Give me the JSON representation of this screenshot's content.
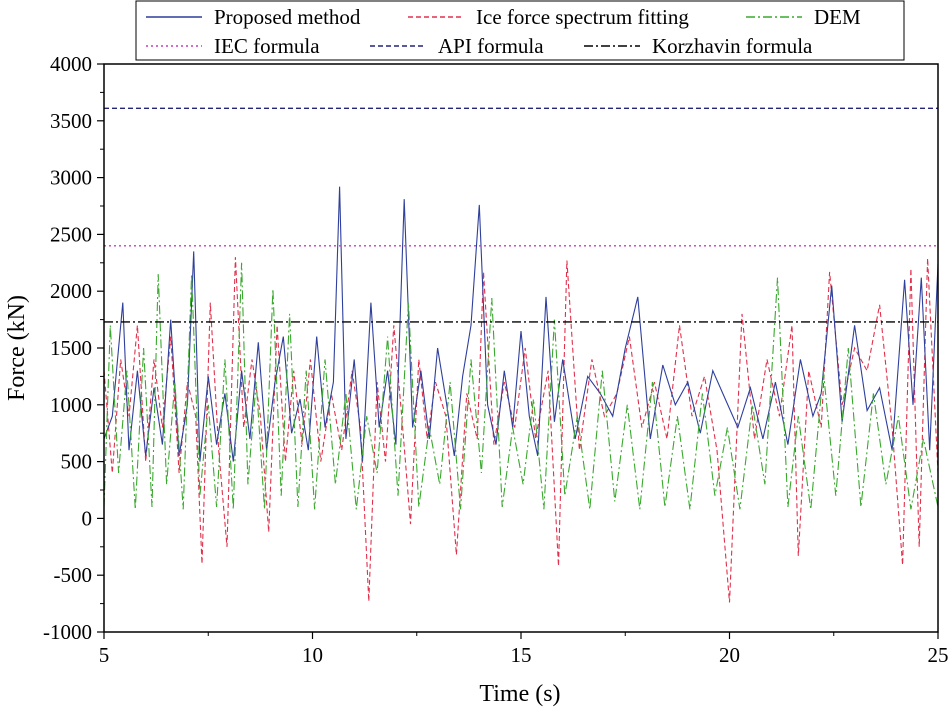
{
  "chart_data": {
    "type": "line",
    "title": "",
    "xlabel": "Time (s)",
    "ylabel": "Force (kN)",
    "xlim": [
      5,
      25
    ],
    "ylim": [
      -1000,
      4000
    ],
    "x_ticks": [
      5,
      10,
      15,
      20,
      25
    ],
    "y_ticks": [
      -1000,
      -500,
      0,
      500,
      1000,
      1500,
      2000,
      2500,
      3000,
      3500,
      4000
    ],
    "grid": false,
    "legend_position": "top",
    "series": [
      {
        "name": "Proposed method",
        "color": "#2e3f9c",
        "style": "solid",
        "x": [
          5.0,
          5.2,
          5.45,
          5.6,
          5.8,
          6.0,
          6.2,
          6.4,
          6.6,
          6.8,
          7.0,
          7.15,
          7.3,
          7.5,
          7.7,
          7.9,
          8.1,
          8.3,
          8.5,
          8.7,
          8.9,
          9.1,
          9.3,
          9.5,
          9.7,
          9.9,
          10.1,
          10.3,
          10.5,
          10.65,
          10.8,
          11.0,
          11.2,
          11.4,
          11.6,
          11.8,
          12.0,
          12.2,
          12.4,
          12.6,
          12.8,
          13.0,
          13.2,
          13.4,
          13.6,
          13.8,
          14.0,
          14.2,
          14.4,
          14.6,
          14.8,
          15.0,
          15.2,
          15.4,
          15.6,
          15.8,
          16.0,
          16.3,
          16.6,
          16.9,
          17.2,
          17.5,
          17.8,
          18.1,
          18.4,
          18.7,
          19.0,
          19.3,
          19.6,
          19.9,
          20.2,
          20.5,
          20.8,
          21.1,
          21.4,
          21.7,
          22.0,
          22.2,
          22.45,
          22.7,
          23.0,
          23.3,
          23.6,
          23.9,
          24.2,
          24.4,
          24.6,
          24.8,
          25.0
        ],
        "values": [
          700,
          900,
          1900,
          600,
          1300,
          550,
          1150,
          650,
          1750,
          550,
          1000,
          2350,
          500,
          1250,
          650,
          1100,
          500,
          1300,
          700,
          1550,
          600,
          1200,
          1600,
          750,
          1050,
          600,
          1600,
          800,
          1200,
          2920,
          700,
          1400,
          500,
          1900,
          800,
          1300,
          650,
          2810,
          800,
          1300,
          700,
          1500,
          1050,
          550,
          1250,
          1700,
          2760,
          1000,
          650,
          1300,
          800,
          1650,
          900,
          550,
          1950,
          850,
          1400,
          700,
          1250,
          1100,
          900,
          1500,
          1950,
          700,
          1350,
          1000,
          1200,
          750,
          1300,
          1050,
          800,
          1150,
          700,
          1200,
          650,
          1400,
          900,
          1100,
          2050,
          850,
          1700,
          950,
          1150,
          600,
          2100,
          1000,
          2120,
          600,
          2240
        ]
      },
      {
        "name": "Ice force spectrum  fitting",
        "color": "#e0304b",
        "style": "dashed",
        "x": [
          5.0,
          5.2,
          5.4,
          5.6,
          5.8,
          6.0,
          6.2,
          6.4,
          6.6,
          6.8,
          7.0,
          7.2,
          7.35,
          7.55,
          7.75,
          7.95,
          8.15,
          8.35,
          8.55,
          8.75,
          8.95,
          9.15,
          9.35,
          9.55,
          9.75,
          9.95,
          10.2,
          10.45,
          10.7,
          10.95,
          11.15,
          11.35,
          11.55,
          11.75,
          11.95,
          12.15,
          12.35,
          12.55,
          12.75,
          12.95,
          13.2,
          13.45,
          13.7,
          13.95,
          14.1,
          14.35,
          14.6,
          14.85,
          15.1,
          15.35,
          15.65,
          15.9,
          16.1,
          16.4,
          16.7,
          17.0,
          17.3,
          17.6,
          17.9,
          18.2,
          18.5,
          18.8,
          19.1,
          19.4,
          19.7,
          20.0,
          20.3,
          20.6,
          20.9,
          21.2,
          21.5,
          21.65,
          21.9,
          22.2,
          22.4,
          22.7,
          23.0,
          23.3,
          23.6,
          23.9,
          24.15,
          24.35,
          24.55,
          24.75,
          25.0
        ],
        "values": [
          1300,
          400,
          1400,
          900,
          1700,
          500,
          1400,
          800,
          1600,
          400,
          1200,
          900,
          -400,
          1900,
          600,
          -250,
          2300,
          800,
          1400,
          900,
          -120,
          1700,
          500,
          1300,
          650,
          1400,
          500,
          1100,
          600,
          1300,
          800,
          -730,
          1200,
          500,
          1700,
          850,
          -50,
          1400,
          700,
          1200,
          900,
          -320,
          1100,
          700,
          2170,
          650,
          1200,
          800,
          1500,
          700,
          1300,
          -420,
          2270,
          600,
          1400,
          900,
          1100,
          1600,
          800,
          1200,
          700,
          1700,
          900,
          1250,
          600,
          -740,
          1800,
          700,
          1400,
          900,
          1700,
          -330,
          1300,
          800,
          2170,
          1000,
          1500,
          1300,
          1880,
          800,
          -410,
          2200,
          -250,
          2290,
          400
        ]
      },
      {
        "name": "DEM",
        "color": "#3aa82e",
        "style": "dashdot",
        "x": [
          5.0,
          5.15,
          5.35,
          5.55,
          5.75,
          5.95,
          6.15,
          6.3,
          6.5,
          6.7,
          6.9,
          7.1,
          7.3,
          7.5,
          7.7,
          7.9,
          8.1,
          8.3,
          8.45,
          8.65,
          8.85,
          9.05,
          9.25,
          9.45,
          9.65,
          9.85,
          10.05,
          10.3,
          10.55,
          10.8,
          11.05,
          11.3,
          11.55,
          11.8,
          12.05,
          12.3,
          12.55,
          12.8,
          13.05,
          13.3,
          13.55,
          13.8,
          14.05,
          14.3,
          14.55,
          14.8,
          15.05,
          15.3,
          15.55,
          15.8,
          16.05,
          16.35,
          16.65,
          16.95,
          17.25,
          17.55,
          17.85,
          18.15,
          18.45,
          18.75,
          19.05,
          19.35,
          19.65,
          19.95,
          20.25,
          20.55,
          20.85,
          21.15,
          21.4,
          21.65,
          21.95,
          22.25,
          22.55,
          22.85,
          23.15,
          23.45,
          23.75,
          24.05,
          24.35,
          24.65,
          25.0
        ],
        "values": [
          100,
          1700,
          400,
          1300,
          80,
          1500,
          100,
          2150,
          300,
          1200,
          80,
          2150,
          200,
          1000,
          100,
          1400,
          80,
          2250,
          300,
          1200,
          80,
          2020,
          200,
          1800,
          100,
          1300,
          80,
          1400,
          300,
          1100,
          80,
          900,
          400,
          1600,
          200,
          1900,
          100,
          800,
          300,
          1200,
          80,
          1400,
          400,
          1940,
          100,
          800,
          300,
          1050,
          80,
          1750,
          200,
          900,
          80,
          1300,
          150,
          1000,
          80,
          1200,
          100,
          900,
          80,
          1100,
          200,
          800,
          80,
          1000,
          300,
          2120,
          100,
          900,
          80,
          1300,
          200,
          1500,
          100,
          1100,
          300,
          900,
          80,
          700,
          100
        ]
      },
      {
        "name": "IEC formula",
        "color": "#c23fb7",
        "style": "dotted",
        "x": [
          5,
          25
        ],
        "values": [
          2400,
          2400
        ]
      },
      {
        "name": "API formula",
        "color": "#23237a",
        "style": "dashed",
        "x": [
          5,
          25
        ],
        "values": [
          3610,
          3610
        ]
      },
      {
        "name": "Korzhavin formula",
        "color": "#000000",
        "style": "dashdot",
        "x": [
          5,
          25
        ],
        "values": [
          1730,
          1730
        ]
      }
    ]
  }
}
